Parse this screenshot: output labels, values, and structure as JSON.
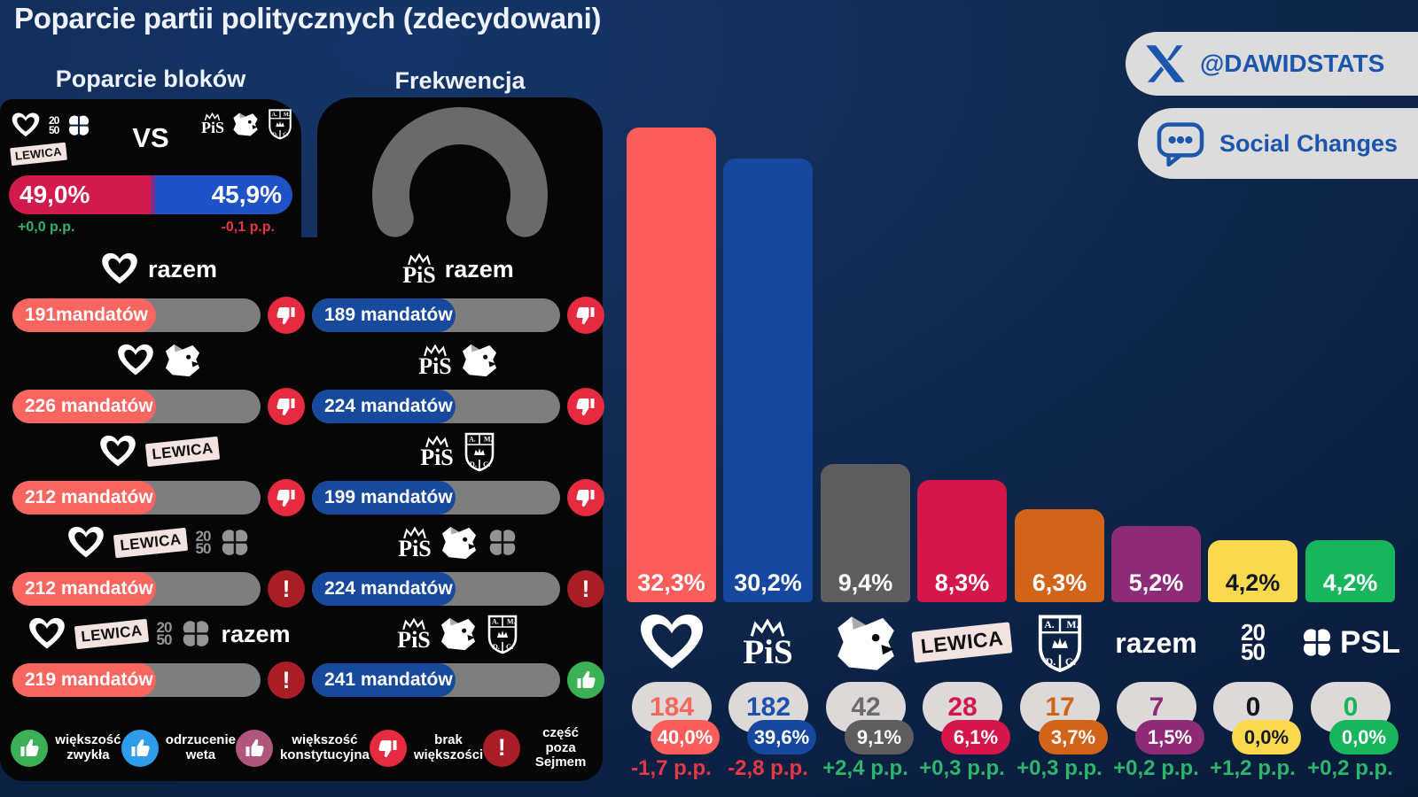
{
  "title": "Poparcie partii politycznych (zdecydowani)",
  "badges": {
    "x_handle": "@DAWIDSTATS",
    "brand_name": "Social Changes"
  },
  "panels": {
    "blocks_heading": "Poparcie bloków",
    "turnout_heading": "Frekwencja"
  },
  "party_labels": {
    "pis": "PiS",
    "lewica": "LEWICA",
    "razem": "razem",
    "psl": "PSL",
    "p2050_top": "20",
    "p2050_bottom": "50",
    "kkp_letters": [
      "A.",
      "M.",
      "D.",
      "G."
    ]
  },
  "vs": {
    "label": "VS",
    "left": {
      "pct": "49,0%",
      "share": 49.0,
      "change": "+0,0 p.p."
    },
    "right": {
      "pct": "45,9%",
      "share": 45.9,
      "change": "-0,1 p.p."
    },
    "left_parties": [
      "ko",
      "polska2050",
      "psl",
      "lewica"
    ],
    "right_parties": [
      "pis",
      "konfederacja",
      "kkp"
    ]
  },
  "coalitions": {
    "left_column": [
      {
        "parties": [
          "ko",
          "razem-text"
        ],
        "mandates": "191mandatów",
        "status": "no-majority"
      },
      {
        "parties": [
          "ko",
          "konfederacja"
        ],
        "mandates": "226 mandatów",
        "status": "no-majority"
      },
      {
        "parties": [
          "ko",
          "lewica"
        ],
        "mandates": "212 mandatów",
        "status": "no-majority"
      },
      {
        "parties": [
          "ko",
          "lewica",
          "polska2050#dim",
          "psl#dim"
        ],
        "mandates": "212 mandatów",
        "status": "outside-sejm"
      },
      {
        "parties": [
          "ko",
          "lewica",
          "polska2050#dim",
          "psl#dim",
          "razem-text"
        ],
        "mandates": "219 mandatów",
        "status": "outside-sejm"
      }
    ],
    "right_column": [
      {
        "parties": [
          "pis",
          "razem-text"
        ],
        "mandates": "189 mandatów",
        "status": "no-majority"
      },
      {
        "parties": [
          "pis",
          "konfederacja"
        ],
        "mandates": "224 mandatów",
        "status": "no-majority"
      },
      {
        "parties": [
          "pis",
          "kkp"
        ],
        "mandates": "199 mandatów",
        "status": "no-majority"
      },
      {
        "parties": [
          "pis",
          "konfederacja",
          "psl#dim"
        ],
        "mandates": "224 mandatów",
        "status": "outside-sejm"
      },
      {
        "parties": [
          "pis",
          "konfederacja",
          "kkp"
        ],
        "mandates": "241 mandatów",
        "status": "simple-majority"
      }
    ]
  },
  "legend": [
    {
      "icon": "thumb-up-icon",
      "color": "#3bb054",
      "label": "większość zwykła"
    },
    {
      "icon": "thumb-up-icon",
      "color": "#2e9ce8",
      "label": "odrzucenie weta"
    },
    {
      "icon": "thumb-up-icon",
      "color": "#b0567c",
      "label": "większość konstytucyjna"
    },
    {
      "icon": "thumb-down-icon",
      "color": "#e62a40",
      "label": "brak większości"
    },
    {
      "icon": "exclamation-icon",
      "color": "#a81d26",
      "label": "część poza Sejmem"
    }
  ],
  "chart_data": {
    "type": "bar",
    "title": "Poparcie partii politycznych (zdecydowani)",
    "categories": [
      "Koalicja Obywatelska",
      "PiS",
      "Konfederacja",
      "Lewica",
      "Konfederacja Korony Polskiej",
      "Razem",
      "Polska 2050",
      "PSL"
    ],
    "icons": [
      "ko",
      "pis",
      "konfederacja",
      "lewica",
      "kkp",
      "razem-text",
      "polska2050",
      "psl-full"
    ],
    "values": [
      32.3,
      30.2,
      9.4,
      8.3,
      6.3,
      5.2,
      4.2,
      4.2
    ],
    "value_labels": [
      "32,3%",
      "30,2%",
      "9,4%",
      "8,3%",
      "6,3%",
      "5,2%",
      "4,2%",
      "4,2%"
    ],
    "mandates": [
      184,
      182,
      42,
      28,
      17,
      7,
      0,
      0
    ],
    "seat_share_labels": [
      "40,0%",
      "39,6%",
      "9,1%",
      "6,1%",
      "3,7%",
      "1,5%",
      "0,0%",
      "0,0%"
    ],
    "changes": [
      "-1,7 p.p.",
      "-2,8 p.p.",
      "+2,4 p.p.",
      "+0,3 p.p.",
      "+0,3 p.p.",
      "+0,2 p.p.",
      "+1,2 p.p.",
      "+0,2 p.p."
    ],
    "colors": [
      "#fb5d5b",
      "#17489f",
      "#5e5e5e",
      "#d4164b",
      "#d2641a",
      "#8e2b76",
      "#fbd94f",
      "#17b55c"
    ],
    "on_color_text": [
      "#ffffff",
      "#ffffff",
      "#ffffff",
      "#ffffff",
      "#ffffff",
      "#ffffff",
      "#14181f",
      "#ffffff"
    ],
    "mandate_text_colors": [
      "#f4695f",
      "#1c52ae",
      "#6b6b6b",
      "#d4164b",
      "#d2641a",
      "#8e2b76",
      "#14181f",
      "#17b55c"
    ],
    "positive_color": "#2db56b",
    "negative_color": "#e63946",
    "ylim": [
      0,
      34
    ],
    "xlabel": "",
    "ylabel": "",
    "grid": false,
    "legend_position": "none"
  }
}
